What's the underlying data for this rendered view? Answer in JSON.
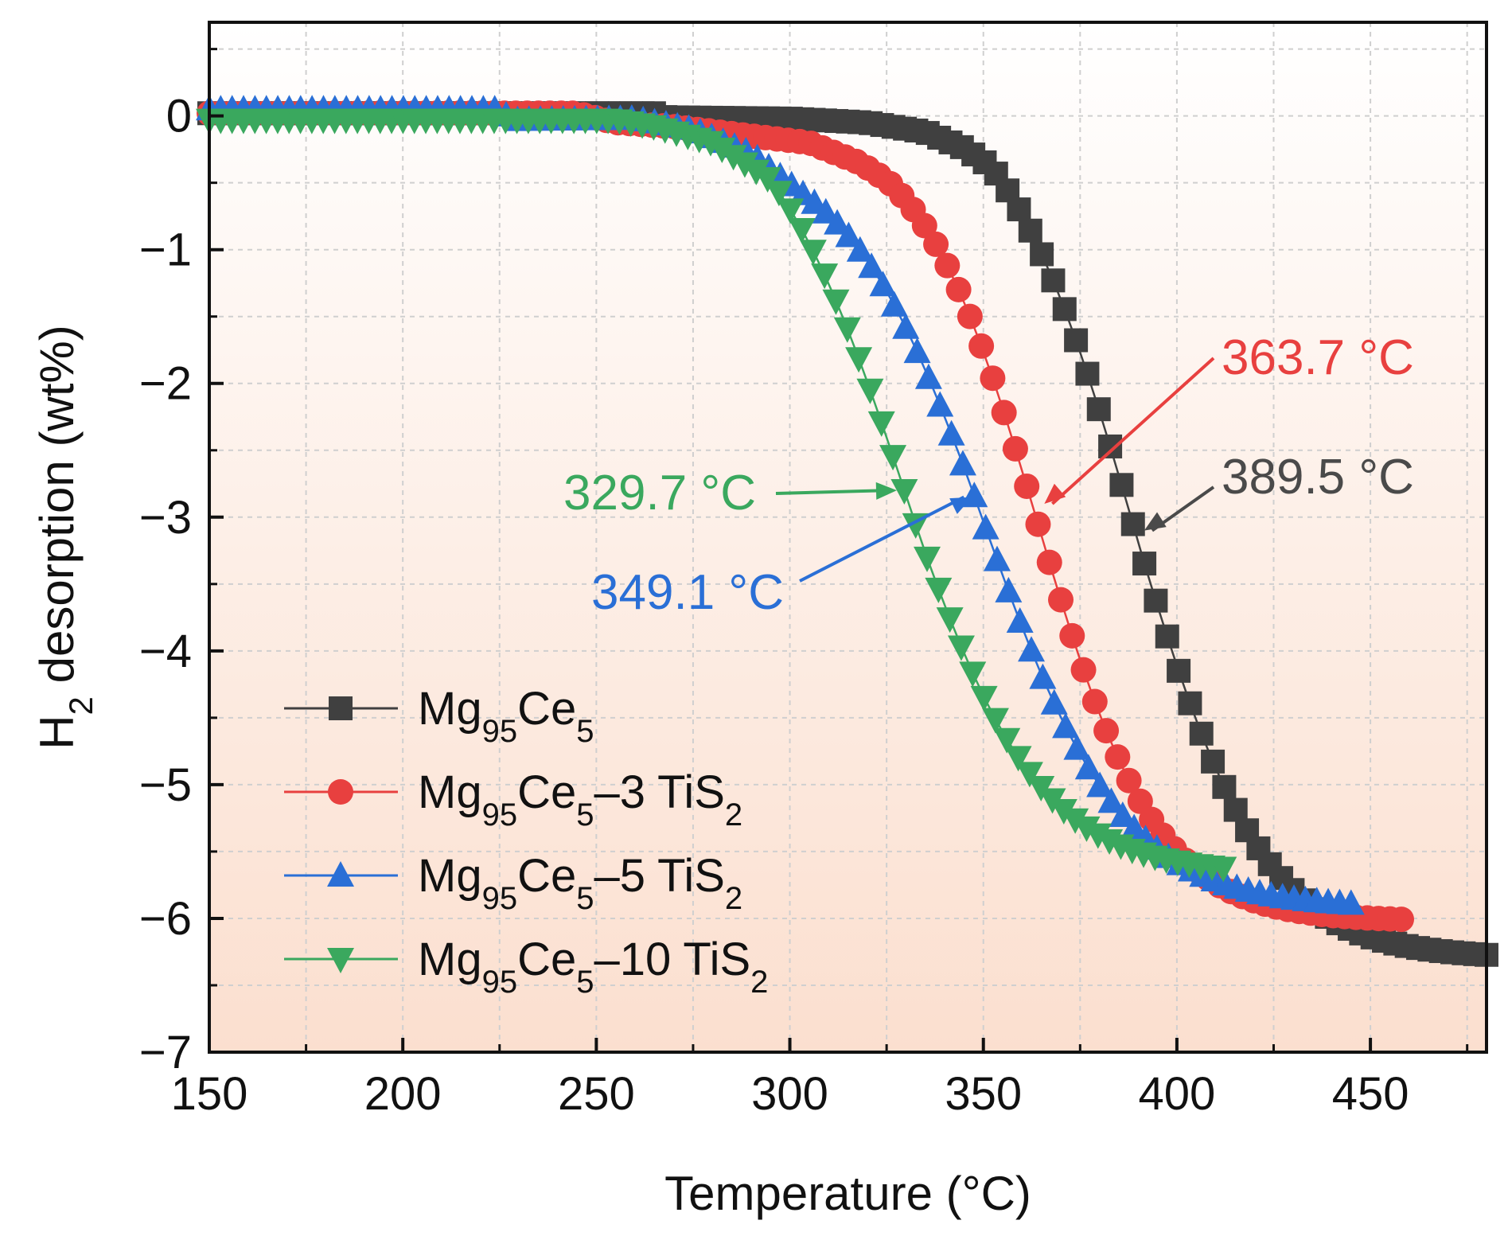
{
  "chart_data": {
    "type": "scatter",
    "title": "",
    "xlabel": "Temperature (°C)",
    "ylabel_parts": [
      "H",
      "2",
      " desorption (wt%)"
    ],
    "xlim": [
      150,
      480
    ],
    "ylim": [
      -7,
      0.7
    ],
    "x_ticks": [
      150,
      200,
      250,
      300,
      350,
      400,
      450
    ],
    "y_ticks": [
      0,
      -1,
      -2,
      -3,
      -4,
      -5,
      -6,
      -7
    ],
    "x_tick_labels": [
      "150",
      "200",
      "250",
      "300",
      "350",
      "400",
      "450"
    ],
    "y_tick_labels": [
      "0",
      "−1",
      "−2",
      "−3",
      "−4",
      "−5",
      "−6",
      "−7"
    ],
    "grid": true,
    "legend_position": "bottom-left",
    "series": [
      {
        "name": "Mg95Ce5",
        "label_parts": [
          [
            "Mg",
            ""
          ],
          [
            "95",
            "sub"
          ],
          [
            "Ce",
            ""
          ],
          [
            "5",
            "sub"
          ]
        ],
        "color": "#404040",
        "marker": "square",
        "x0": 150,
        "x1": 480,
        "n": 113,
        "curve": {
          "T": 389.5,
          "k": 0.06,
          "drop": 6.3
        },
        "early": [
          [
            150,
            0.02
          ],
          [
            265,
            0.02
          ],
          [
            268,
            -0.01
          ],
          [
            300,
            -0.02
          ],
          [
            320,
            -0.05
          ],
          [
            335,
            -0.12
          ],
          [
            345,
            -0.24
          ],
          [
            352,
            -0.38
          ]
        ]
      },
      {
        "name": "Mg95Ce5–3 TiS2",
        "label_parts": [
          [
            "Mg",
            ""
          ],
          [
            "95",
            "sub"
          ],
          [
            "Ce",
            ""
          ],
          [
            "5",
            "sub"
          ],
          [
            "–3 TiS",
            ""
          ],
          [
            "2",
            "sub"
          ]
        ],
        "color": "#e8403f",
        "marker": "circle",
        "x0": 150,
        "x1": 458,
        "n": 106,
        "curve": {
          "T": 363.7,
          "k": 0.065,
          "drop": 6.02
        },
        "early": [
          [
            150,
            0.02
          ],
          [
            245,
            0.02
          ],
          [
            255,
            -0.05
          ],
          [
            270,
            -0.08
          ],
          [
            290,
            -0.15
          ],
          [
            305,
            -0.2
          ],
          [
            318,
            -0.35
          ],
          [
            325,
            -0.48
          ]
        ]
      },
      {
        "name": "Mg95Ce5–5 TiS2",
        "label_parts": [
          [
            "Mg",
            ""
          ],
          [
            "95",
            "sub"
          ],
          [
            "Ce",
            ""
          ],
          [
            "5",
            "sub"
          ],
          [
            "–5 TiS",
            ""
          ],
          [
            "2",
            "sub"
          ]
        ],
        "color": "#2a6fd6",
        "marker": "triangle-up",
        "x0": 150,
        "x1": 445,
        "n": 101,
        "curve": {
          "T": 349.1,
          "k": 0.055,
          "drop": 5.92
        },
        "early": [
          [
            150,
            0.05
          ],
          [
            225,
            0.05
          ],
          [
            228,
            -0.03
          ],
          [
            260,
            -0.02
          ],
          [
            275,
            -0.1
          ],
          [
            290,
            -0.28
          ],
          [
            305,
            -0.62
          ]
        ]
      },
      {
        "name": "Mg95Ce5–10 TiS2",
        "label_parts": [
          [
            "Mg",
            ""
          ],
          [
            "95",
            "sub"
          ],
          [
            "Ce",
            ""
          ],
          [
            "5",
            "sub"
          ],
          [
            "–10 TiS",
            ""
          ],
          [
            "2",
            "sub"
          ]
        ],
        "color": "#3aa85e",
        "marker": "triangle-down",
        "x0": 150,
        "x1": 412,
        "n": 90,
        "curve": {
          "T": 329.7,
          "k": 0.058,
          "drop": 5.67
        },
        "early": [
          [
            150,
            -0.03
          ],
          [
            255,
            -0.03
          ],
          [
            265,
            -0.08
          ],
          [
            280,
            -0.2
          ],
          [
            295,
            -0.48
          ]
        ]
      }
    ],
    "annotations": [
      {
        "text": "363.7 °C",
        "color": "#e8403f",
        "point": [
          363.7,
          -2.9
        ]
      },
      {
        "text": "389.5 °C",
        "color": "#4a4a4a",
        "point": [
          389.5,
          -3.1
        ]
      },
      {
        "text": "329.7 °C",
        "color": "#3aa85e",
        "point": [
          329.7,
          -2.8
        ]
      },
      {
        "text": "349.1 °C",
        "color": "#2a6fd6",
        "point": [
          349.1,
          -2.85
        ]
      }
    ]
  }
}
